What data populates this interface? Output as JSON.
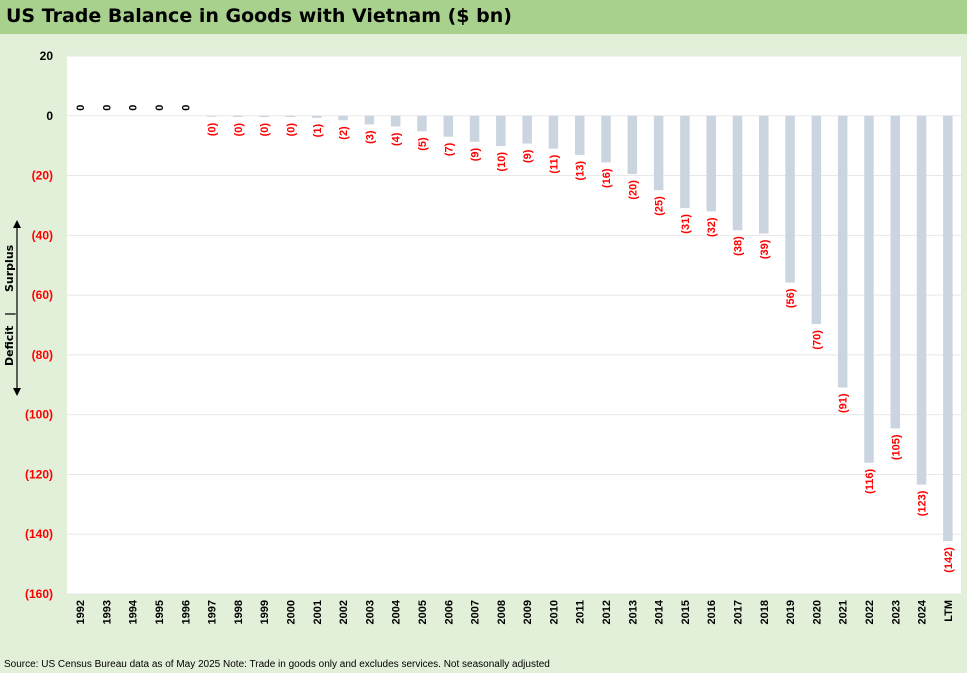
{
  "chart_data": {
    "type": "bar",
    "title": "US Trade Balance in Goods with Vietnam ($ bn)",
    "categories": [
      "1992",
      "1993",
      "1994",
      "1995",
      "1996",
      "1997",
      "1998",
      "1999",
      "2000",
      "2001",
      "2002",
      "2003",
      "2004",
      "2005",
      "2006",
      "2007",
      "2008",
      "2009",
      "2010",
      "2011",
      "2012",
      "2013",
      "2014",
      "2015",
      "2016",
      "2017",
      "2018",
      "2019",
      "2020",
      "2021",
      "2022",
      "2023",
      "2024",
      "LTM"
    ],
    "values": [
      0,
      0,
      0,
      0,
      0,
      -0.3,
      -0.4,
      -0.4,
      -0.4,
      -0.7,
      -1.5,
      -2.9,
      -3.6,
      -5.2,
      -7.0,
      -8.7,
      -10.1,
      -9.3,
      -11.0,
      -13.1,
      -15.6,
      -19.5,
      -24.9,
      -30.9,
      -32.0,
      -38.3,
      -39.4,
      -55.8,
      -69.7,
      -90.9,
      -116.1,
      -104.6,
      -123.4,
      -142.3
    ],
    "data_labels": [
      "0",
      "0",
      "0",
      "0",
      "0",
      "(0)",
      "(0)",
      "(0)",
      "(0)",
      "(1)",
      "(2)",
      "(3)",
      "(4)",
      "(5)",
      "(7)",
      "(9)",
      "(10)",
      "(9)",
      "(11)",
      "(13)",
      "(16)",
      "(20)",
      "(25)",
      "(31)",
      "(32)",
      "(38)",
      "(39)",
      "(56)",
      "(70)",
      "(91)",
      "(116)",
      "(105)",
      "(123)",
      "(142)"
    ],
    "ylim": [
      -160,
      20
    ],
    "yticks": [
      20,
      0,
      -20,
      -40,
      -60,
      -80,
      -100,
      -120,
      -140,
      -160
    ],
    "ytick_labels": [
      "20",
      "0",
      "(20)",
      "(40)",
      "(60)",
      "(80)",
      "(100)",
      "(120)",
      "(140)",
      "(160)"
    ],
    "xlabel": "",
    "ylabel": "",
    "grid": true,
    "side_annotation": {
      "surplus": "Surplus",
      "divider": "|",
      "deficit": "Deficit"
    },
    "source": "Source: US Census Bureau data as of May 2025 Note: Trade in goods only and excludes services. Not seasonally adjusted",
    "colors": {
      "bar": "#cbd5e0",
      "negative_text": "#ff0000",
      "positive_text": "#000000",
      "grid": "#e8e8e8"
    }
  }
}
